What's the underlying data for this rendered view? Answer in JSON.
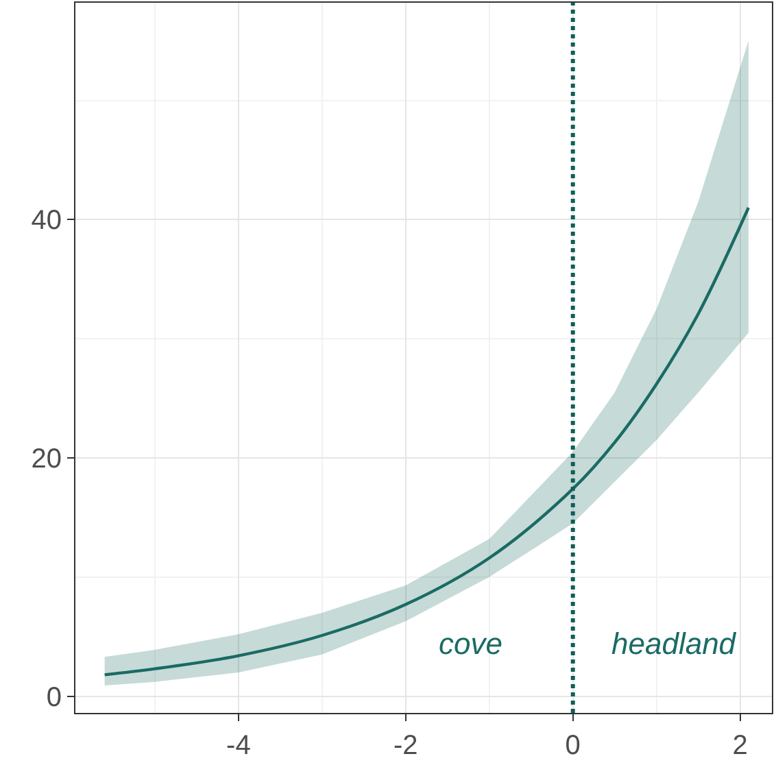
{
  "chart_data": {
    "type": "line",
    "x": [
      -5.6,
      -5,
      -4,
      -3,
      -2,
      -1,
      0,
      0.5,
      1,
      1.5,
      2.1
    ],
    "series": [
      {
        "color": "#1a6b63",
        "values": [
          1.8,
          2.3,
          3.4,
          5.1,
          7.7,
          11.6,
          17.4,
          21.3,
          26.2,
          32.1,
          41.0
        ],
        "lower": [
          0.9,
          1.2,
          2.0,
          3.5,
          6.3,
          10.0,
          14.5,
          18.0,
          21.5,
          25.5,
          30.5
        ],
        "upper": [
          3.3,
          3.9,
          5.2,
          7.0,
          9.3,
          13.2,
          20.5,
          25.5,
          32.5,
          41.5,
          55.0
        ]
      }
    ],
    "xlim": [
      -5.95,
      2.38
    ],
    "ylim": [
      -1.4,
      58.2
    ],
    "xticks": [
      -4,
      -2,
      0,
      2
    ],
    "yticks": [
      0,
      20,
      40
    ],
    "grid": true,
    "marker": "none",
    "line_style": "solid",
    "ref_lines": [
      {
        "axis": "x",
        "value": 0,
        "color": "#0f5f5a",
        "line_style": "dotted"
      }
    ],
    "annotations": [
      "cove",
      "headland"
    ]
  }
}
